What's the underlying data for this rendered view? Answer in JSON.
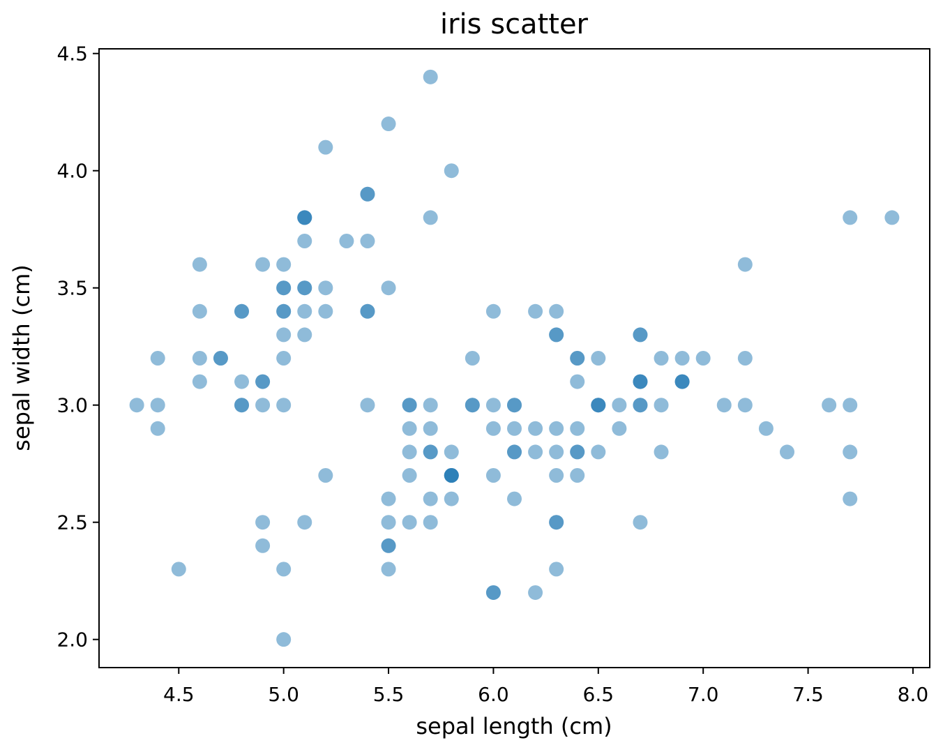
{
  "chart_data": {
    "type": "scatter",
    "title": "iris scatter",
    "xlabel": "sepal length (cm)",
    "ylabel": "sepal width (cm)",
    "xlim": [
      4.12,
      8.08
    ],
    "ylim": [
      1.88,
      4.52
    ],
    "xticks": [
      "4.5",
      "5.0",
      "5.5",
      "6.0",
      "6.5",
      "7.0",
      "7.5",
      "8.0"
    ],
    "yticks": [
      "2.0",
      "2.5",
      "3.0",
      "3.5",
      "4.0",
      "4.5"
    ],
    "grid": false,
    "marker_color": "#1f77b4",
    "marker_alpha": 0.5,
    "x": [
      5.1,
      4.9,
      4.7,
      4.6,
      5.0,
      5.4,
      4.6,
      5.0,
      4.4,
      4.9,
      5.4,
      4.8,
      4.8,
      4.3,
      5.8,
      5.7,
      5.4,
      5.1,
      5.7,
      5.1,
      5.4,
      5.1,
      4.6,
      5.1,
      4.8,
      5.0,
      5.0,
      5.2,
      5.2,
      4.7,
      4.8,
      5.4,
      5.2,
      5.5,
      4.9,
      5.0,
      5.5,
      4.9,
      4.4,
      5.1,
      5.0,
      4.5,
      4.4,
      5.0,
      5.1,
      4.8,
      5.1,
      4.6,
      5.3,
      5.0,
      7.0,
      6.4,
      6.9,
      5.5,
      6.5,
      5.7,
      6.3,
      4.9,
      6.6,
      5.2,
      5.0,
      5.9,
      6.0,
      6.1,
      5.6,
      6.7,
      5.6,
      5.8,
      6.2,
      5.6,
      5.9,
      6.1,
      6.3,
      6.1,
      6.4,
      6.6,
      6.8,
      6.7,
      6.0,
      5.7,
      5.5,
      5.5,
      5.8,
      6.0,
      5.4,
      6.0,
      6.7,
      6.3,
      5.6,
      5.5,
      5.5,
      6.1,
      5.8,
      5.0,
      5.6,
      5.7,
      5.7,
      6.2,
      5.1,
      5.7,
      6.3,
      5.8,
      7.1,
      6.3,
      6.5,
      7.6,
      4.9,
      7.3,
      6.7,
      7.2,
      6.5,
      6.4,
      6.8,
      5.7,
      5.8,
      6.4,
      6.5,
      7.7,
      7.7,
      6.0,
      6.9,
      5.6,
      7.7,
      6.3,
      6.7,
      7.2,
      6.2,
      6.1,
      6.4,
      7.2,
      7.4,
      7.9,
      6.4,
      6.3,
      6.1,
      7.7,
      6.3,
      6.4,
      6.0,
      6.9,
      6.7,
      6.9,
      5.8,
      6.8,
      6.7,
      6.7,
      6.3,
      6.5,
      6.2,
      5.9
    ],
    "y": [
      3.5,
      3.0,
      3.2,
      3.1,
      3.6,
      3.9,
      3.4,
      3.4,
      2.9,
      3.1,
      3.7,
      3.4,
      3.0,
      3.0,
      4.0,
      4.4,
      3.9,
      3.5,
      3.8,
      3.8,
      3.4,
      3.7,
      3.6,
      3.3,
      3.4,
      3.0,
      3.4,
      3.5,
      3.4,
      3.2,
      3.1,
      3.4,
      4.1,
      4.2,
      3.1,
      3.2,
      3.5,
      3.6,
      3.0,
      3.4,
      3.5,
      2.3,
      3.2,
      3.5,
      3.8,
      3.0,
      3.8,
      3.2,
      3.7,
      3.3,
      3.2,
      3.2,
      3.1,
      2.3,
      2.8,
      2.8,
      3.3,
      2.4,
      2.9,
      2.7,
      2.0,
      3.0,
      2.2,
      2.9,
      2.9,
      3.1,
      3.0,
      2.7,
      2.2,
      2.5,
      3.2,
      2.8,
      2.5,
      2.8,
      2.9,
      3.0,
      2.8,
      3.0,
      2.9,
      2.6,
      2.4,
      2.4,
      2.7,
      2.7,
      3.0,
      3.4,
      3.1,
      2.3,
      3.0,
      2.5,
      2.6,
      3.0,
      2.6,
      2.3,
      2.7,
      3.0,
      2.9,
      2.9,
      2.5,
      2.8,
      3.3,
      2.7,
      3.0,
      2.9,
      3.0,
      3.0,
      2.5,
      2.9,
      2.5,
      3.6,
      3.2,
      2.7,
      3.0,
      2.5,
      2.8,
      3.2,
      3.0,
      3.8,
      2.6,
      2.2,
      3.2,
      2.8,
      2.8,
      2.7,
      3.3,
      3.2,
      2.8,
      3.0,
      2.8,
      3.0,
      2.8,
      3.8,
      2.8,
      2.8,
      2.6,
      3.0,
      3.4,
      3.1,
      3.0,
      3.1,
      3.1,
      3.1,
      2.7,
      3.2,
      3.3,
      3.0,
      2.5,
      3.0,
      3.4,
      3.0
    ]
  }
}
